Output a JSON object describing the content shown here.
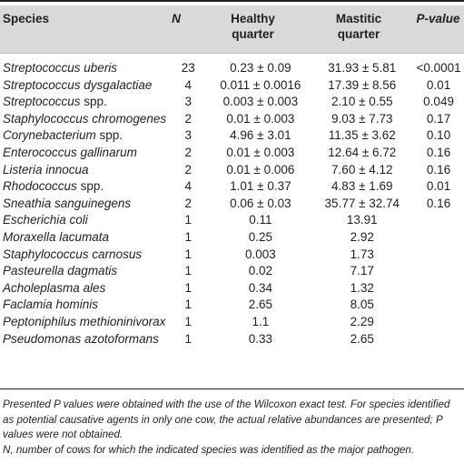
{
  "header": {
    "species": "Species",
    "n": "N",
    "healthy_1": "Healthy",
    "healthy_2": "quarter",
    "mastitic_1": "Mastitic",
    "mastitic_2": "quarter",
    "pvalue": "P-value"
  },
  "rows": [
    {
      "species_italic": "Streptococcus uberis",
      "species_plain": "",
      "n": "23",
      "healthy": "0.23 ± 0.09",
      "mastitic": "31.93 ± 5.81",
      "p": "<0.0001"
    },
    {
      "species_italic": "Streptococcus dysgalactiae",
      "species_plain": "",
      "n": "4",
      "healthy": "0.011 ± 0.0016",
      "mastitic": "17.39 ± 8.56",
      "p": "0.01"
    },
    {
      "species_italic": "Streptococcus",
      "species_plain": " spp.",
      "n": "3",
      "healthy": "0.003 ± 0.003",
      "mastitic": "2.10 ± 0.55",
      "p": "0.049"
    },
    {
      "species_italic": "Staphylococcus chromogenes",
      "species_plain": "",
      "n": "2",
      "healthy": "0.01 ± 0.003",
      "mastitic": "9.03 ± 7.73",
      "p": "0.17"
    },
    {
      "species_italic": "Corynebacterium",
      "species_plain": " spp.",
      "n": "3",
      "healthy": "4.96 ± 3.01",
      "mastitic": "11.35 ± 3.62",
      "p": "0.10"
    },
    {
      "species_italic": "Enterococcus gallinarum",
      "species_plain": "",
      "n": "2",
      "healthy": "0.01 ± 0.003",
      "mastitic": "12.64 ± 6.72",
      "p": "0.16"
    },
    {
      "species_italic": "Listeria innocua",
      "species_plain": "",
      "n": "2",
      "healthy": "0.01 ± 0.006",
      "mastitic": "7.60 ± 4.12",
      "p": "0.16"
    },
    {
      "species_italic": "Rhodococcus",
      "species_plain": " spp.",
      "n": "4",
      "healthy": "1.01 ± 0.37",
      "mastitic": "4.83 ± 1.69",
      "p": "0.01"
    },
    {
      "species_italic": "Sneathia sanguinegens",
      "species_plain": "",
      "n": "2",
      "healthy": "0.06 ± 0.03",
      "mastitic": "35.77 ± 32.74",
      "p": "0.16"
    },
    {
      "species_italic": "Escherichia coli",
      "species_plain": "",
      "n": "1",
      "healthy": "0.11",
      "mastitic": "13.91",
      "p": ""
    },
    {
      "species_italic": "Moraxella lacumata",
      "species_plain": "",
      "n": "1",
      "healthy": "0.25",
      "mastitic": "2.92",
      "p": ""
    },
    {
      "species_italic": "Staphylococcus carnosus",
      "species_plain": "",
      "n": "1",
      "healthy": "0.003",
      "mastitic": "1.73",
      "p": ""
    },
    {
      "species_italic": "Pasteurella dagmatis",
      "species_plain": "",
      "n": "1",
      "healthy": "0.02",
      "mastitic": "7.17",
      "p": ""
    },
    {
      "species_italic": "Acholeplasma ales",
      "species_plain": "",
      "n": "1",
      "healthy": "0.34",
      "mastitic": "1.32",
      "p": ""
    },
    {
      "species_italic": "Faclamia hominis",
      "species_plain": "",
      "n": "1",
      "healthy": "2.65",
      "mastitic": "8.05",
      "p": ""
    },
    {
      "species_italic": "Peptoniphilus methioninivorax",
      "species_plain": "",
      "n": "1",
      "healthy": "1.1",
      "mastitic": "2.29",
      "p": ""
    },
    {
      "species_italic": "Pseudomonas azotoformans",
      "species_plain": "",
      "n": "1",
      "healthy": "0.33",
      "mastitic": "2.65",
      "p": ""
    }
  ],
  "footnotes": {
    "note1": "Presented P values were obtained with the use of the Wilcoxon exact test. For species identified as potential causative agents in only one cow, the actual relative abundances are presented; P values were not obtained.",
    "note2": "N, number of cows for which the indicated species was identified as the major pathogen."
  }
}
